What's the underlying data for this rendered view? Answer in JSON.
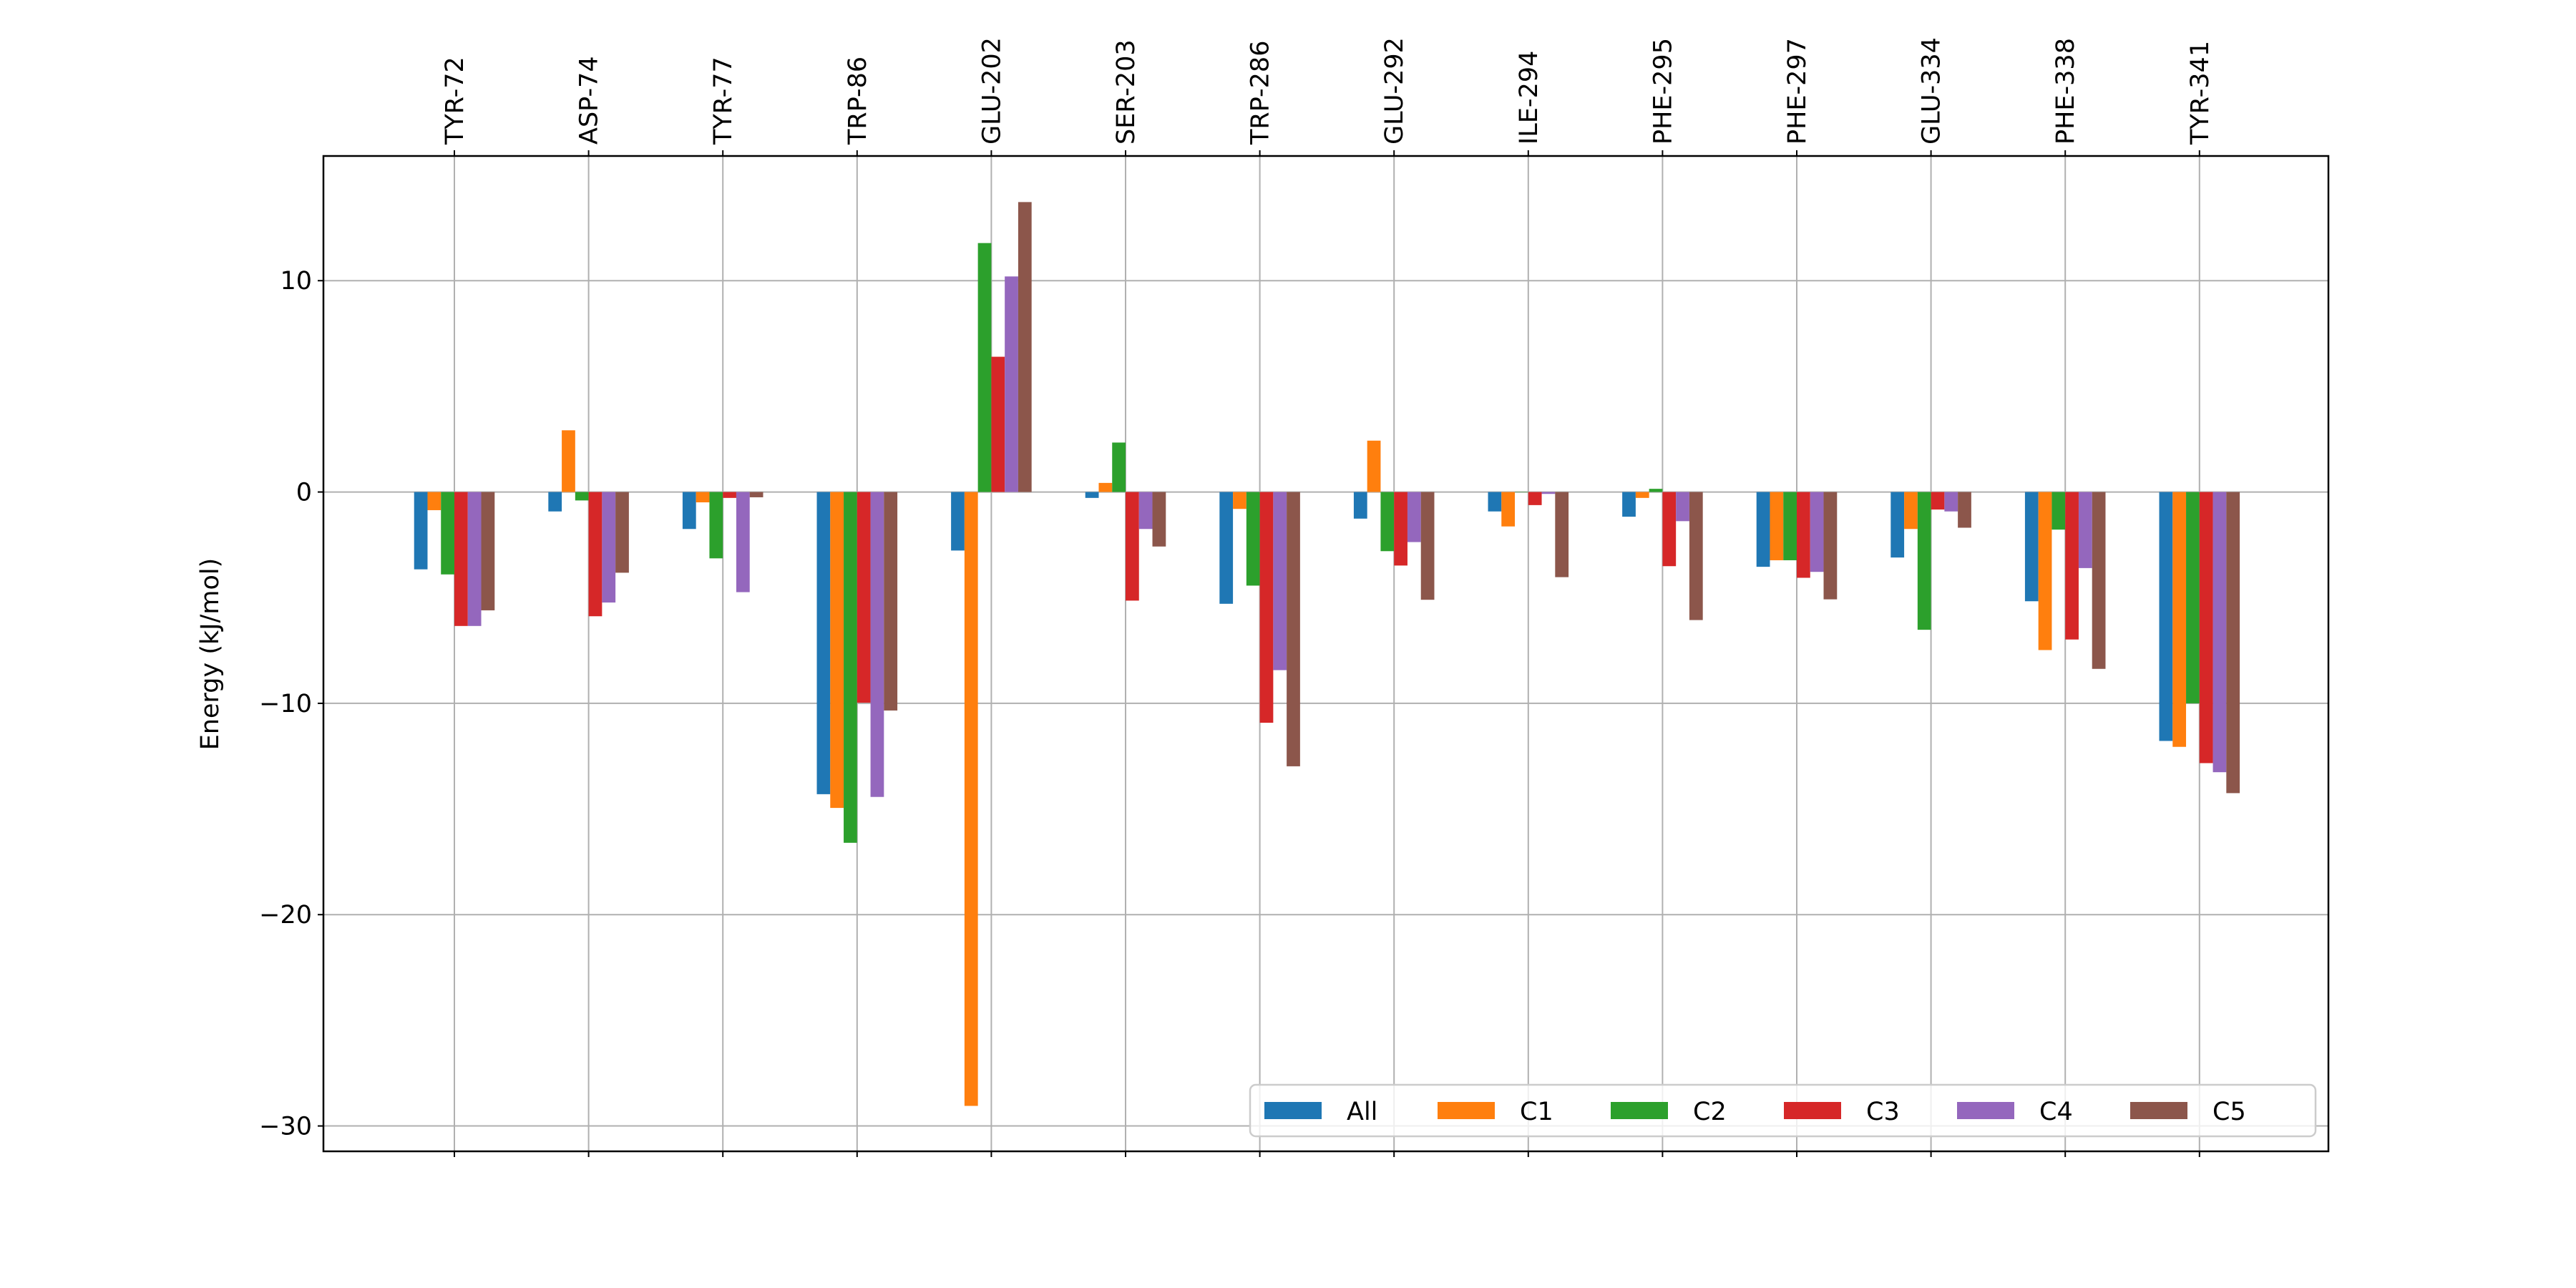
{
  "chart_data": {
    "type": "bar",
    "title": "",
    "xlabel": "",
    "ylabel": "Energy (kJ/mol)",
    "ylim": [
      -31.2,
      15.9
    ],
    "yticks": [
      10,
      0,
      -10,
      -20,
      -30
    ],
    "ytick_labels": [
      "10",
      "0",
      "−10",
      "−20",
      "−30"
    ],
    "x_tick_position": "top",
    "grid": true,
    "legend_placement": "lower-right",
    "categories": [
      "TYR-72",
      "ASP-74",
      "TYR-77",
      "TRP-86",
      "GLU-202",
      "SER-203",
      "TRP-286",
      "GLU-292",
      "ILE-294",
      "PHE-295",
      "PHE-297",
      "GLU-334",
      "PHE-338",
      "TYR-341"
    ],
    "series": [
      {
        "name": "All",
        "color": "#1f77b4",
        "values": [
          -3.66,
          -0.92,
          -1.75,
          -14.3,
          -2.77,
          -0.28,
          -5.29,
          -1.26,
          -0.92,
          -1.17,
          -3.54,
          -3.1,
          -5.17,
          -11.78
        ]
      },
      {
        "name": "C1",
        "color": "#ff7f0e",
        "values": [
          -0.86,
          2.92,
          -0.49,
          -14.95,
          -29.05,
          0.43,
          -0.8,
          2.43,
          -1.63,
          -0.28,
          -3.23,
          -1.75,
          -7.48,
          -12.06
        ]
      },
      {
        "name": "C2",
        "color": "#2ca02c",
        "values": [
          -3.9,
          -0.4,
          -3.14,
          -16.6,
          11.78,
          2.34,
          -4.43,
          -2.8,
          0.0,
          0.15,
          -3.23,
          -6.52,
          -1.78,
          -10.0
        ]
      },
      {
        "name": "C3",
        "color": "#d62728",
        "values": [
          -6.34,
          -5.88,
          -0.28,
          -9.97,
          6.4,
          -5.14,
          -10.92,
          -3.48,
          -0.62,
          -3.51,
          -4.06,
          -0.83,
          -6.98,
          -12.83
        ]
      },
      {
        "name": "C4",
        "color": "#9467bd",
        "values": [
          -6.34,
          -5.23,
          -4.74,
          -14.43,
          10.2,
          -1.75,
          -8.43,
          -2.37,
          -0.09,
          -1.38,
          -3.78,
          -0.92,
          -3.6,
          -13.26
        ]
      },
      {
        "name": "C5",
        "color": "#8c564b",
        "values": [
          -5.6,
          -3.82,
          -0.25,
          -10.34,
          13.72,
          -2.58,
          -12.98,
          -5.1,
          -4.03,
          -6.06,
          -5.08,
          -1.69,
          -8.37,
          -14.25
        ]
      }
    ]
  }
}
